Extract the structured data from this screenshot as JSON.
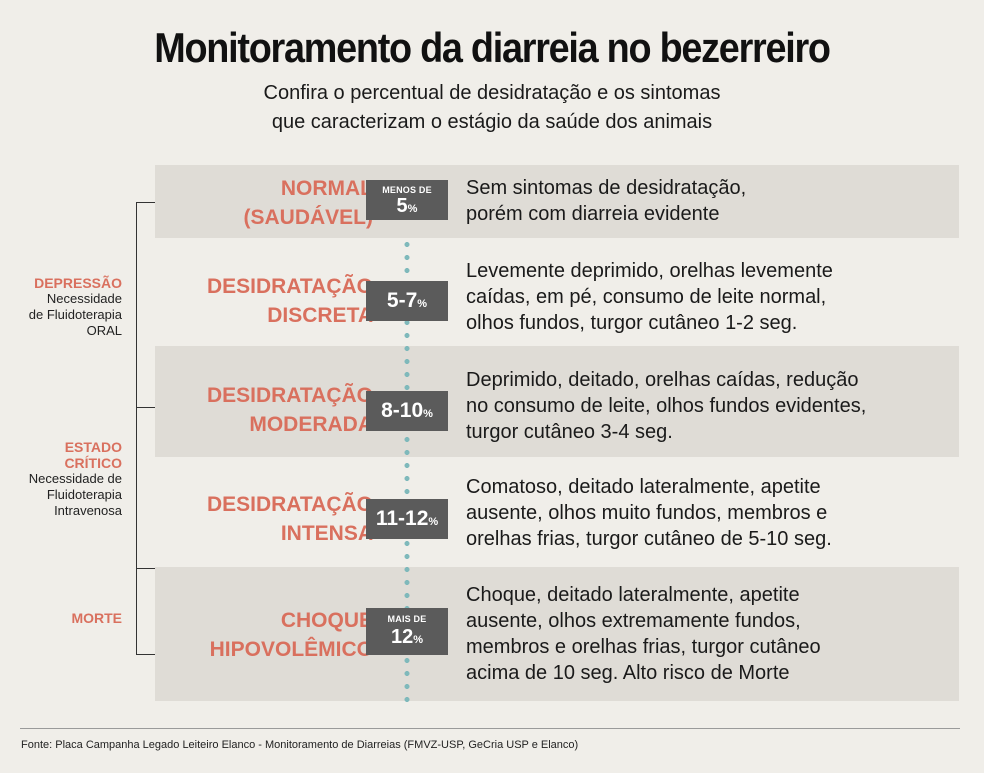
{
  "title": "Monitoramento da diarreia no bezerreiro",
  "subtitle": {
    "line1": "Confira o percentual de desidratação e os sintomas",
    "line2": "que caracterizam o estágio da saúde dos animais"
  },
  "colors": {
    "accent": "#d9705e",
    "badge": "#5b5b5b",
    "row_shade": "#dfdcd6",
    "background": "#f0eee9",
    "dots": "#7fb9bb"
  },
  "stages": [
    {
      "name": [
        "NORMAL",
        "(SAUDÁVEL)"
      ],
      "badge_top": "MENOS DE",
      "badge_value": "5",
      "badge_unit": "%",
      "description": [
        "Sem sintomas de desidratação,",
        "porém com diarreia evidente"
      ]
    },
    {
      "name": [
        "DESIDRATAÇÃO",
        "DISCRETA"
      ],
      "badge_top": "",
      "badge_value": "5-7",
      "badge_unit": "%",
      "description": [
        "Levemente deprimido, orelhas levemente",
        "caídas, em pé, consumo de leite normal,",
        "olhos fundos, turgor cutâneo 1-2 seg."
      ]
    },
    {
      "name": [
        "DESIDRATAÇÃO",
        "MODERADA"
      ],
      "badge_top": "",
      "badge_value": "8-10",
      "badge_unit": "%",
      "description": [
        "Deprimido, deitado, orelhas caídas, redução",
        "no consumo de leite, olhos fundos evidentes,",
        "turgor cutâneo 3-4 seg."
      ]
    },
    {
      "name": [
        "DESIDRATAÇÃO",
        "INTENSA"
      ],
      "badge_top": "",
      "badge_value": "11-12",
      "badge_unit": "%",
      "description": [
        "Comatoso, deitado lateralmente, apetite",
        "ausente, olhos muito fundos, membros e",
        "orelhas frias, turgor cutâneo de 5-10 seg."
      ]
    },
    {
      "name": [
        "CHOQUE",
        "HIPOVOLÊMICO"
      ],
      "badge_top": "MAIS DE",
      "badge_value": "12",
      "badge_unit": "%",
      "description": [
        "Choque, deitado lateralmente, apetite",
        "ausente, olhos extremamente fundos,",
        "membros e orelhas frias, turgor cutâneo",
        "acima de 10 seg. Alto risco de Morte"
      ]
    }
  ],
  "groups": {
    "depressao": {
      "label": "DEPRESSÃO",
      "lines": [
        "Necessidade",
        "de Fluidoterapia",
        "ORAL"
      ]
    },
    "estado_critico": {
      "label": [
        "ESTADO",
        "CRÍTICO"
      ],
      "lines": [
        "Necessidade de",
        "Fluidoterapia",
        "Intravenosa"
      ]
    },
    "morte": {
      "label": "MORTE"
    }
  },
  "source": "Fonte: Placa Campanha Legado Leiteiro Elanco - Monitoramento de Diarreias (FMVZ-USP, GeCria USP e Elanco)"
}
